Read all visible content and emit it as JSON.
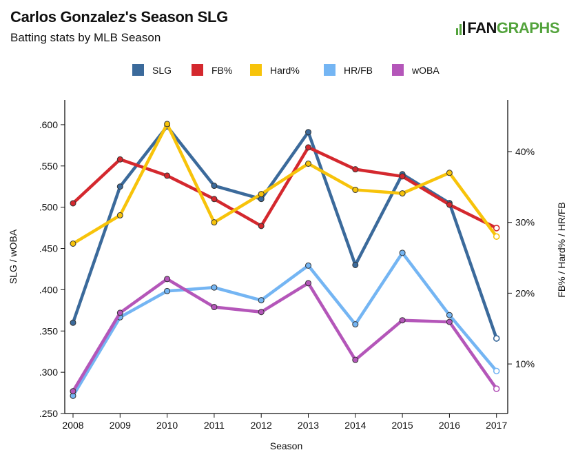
{
  "header": {
    "title": "Carlos Gonzalez's Season SLG",
    "subtitle": "Batting stats by MLB Season",
    "brand_left": "FAN",
    "brand_right": "GRAPHS"
  },
  "chart_data": {
    "type": "line",
    "title": "Carlos Gonzalez's Season SLG",
    "subtitle": "Batting stats by MLB Season",
    "xlabel": "Season",
    "ylabel_left": "SLG / wOBA",
    "ylabel_right": "FB% / Hard% / HR/FB",
    "categories": [
      "2008",
      "2009",
      "2010",
      "2011",
      "2012",
      "2013",
      "2014",
      "2015",
      "2016",
      "2017"
    ],
    "ylim_left": [
      0.25,
      0.63
    ],
    "ylim_right": [
      3.0,
      47.3
    ],
    "left_ticks": [
      ".250",
      ".300",
      ".350",
      ".400",
      ".450",
      ".500",
      ".550",
      ".600"
    ],
    "left_tick_values": [
      0.25,
      0.3,
      0.35,
      0.4,
      0.45,
      0.5,
      0.55,
      0.6
    ],
    "right_ticks": [
      "10%",
      "20%",
      "30%",
      "40%"
    ],
    "right_tick_values": [
      10,
      20,
      30,
      40
    ],
    "legend_position": "top",
    "grid": false,
    "series": [
      {
        "name": "SLG",
        "axis": "left",
        "color": "#3b6a9b",
        "values": [
          0.36,
          0.525,
          0.598,
          0.526,
          0.51,
          0.591,
          0.43,
          0.54,
          0.505,
          0.341
        ]
      },
      {
        "name": "FB%",
        "axis": "right",
        "color": "#d4282e",
        "values": [
          32.7,
          38.9,
          36.6,
          33.3,
          29.5,
          40.6,
          37.5,
          36.5,
          32.5,
          29.2
        ]
      },
      {
        "name": "Hard%",
        "axis": "right",
        "color": "#f7c30a",
        "values": [
          27.0,
          31.0,
          43.9,
          30.0,
          34.0,
          38.3,
          34.6,
          34.1,
          37.0,
          28.0
        ]
      },
      {
        "name": "HR/FB",
        "axis": "right",
        "color": "#74b5f3",
        "values": [
          5.5,
          16.6,
          20.3,
          20.8,
          19.0,
          23.9,
          15.6,
          25.7,
          16.9,
          9.0
        ]
      },
      {
        "name": "wOBA",
        "axis": "left",
        "color": "#b456b9",
        "values": [
          0.277,
          0.372,
          0.413,
          0.379,
          0.373,
          0.408,
          0.315,
          0.363,
          0.361,
          0.28
        ]
      }
    ]
  }
}
